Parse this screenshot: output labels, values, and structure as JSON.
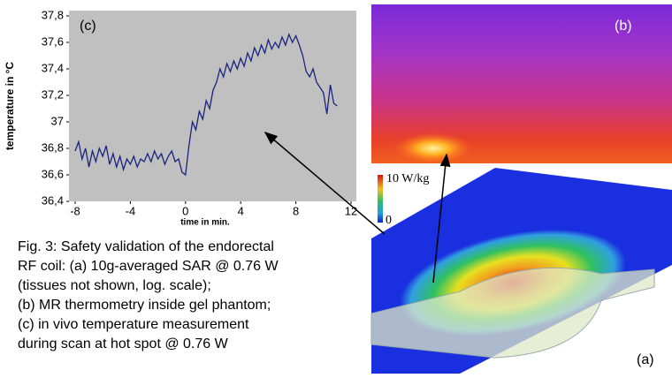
{
  "chart_data": {
    "type": "line",
    "ylabel": "temperature in °C",
    "xlabel": "time in min.",
    "annotation": "(c)",
    "color": "#1a237e",
    "x": [
      -8,
      -7.75,
      -7.5,
      -7.25,
      -7,
      -6.75,
      -6.5,
      -6.25,
      -6,
      -5.75,
      -5.5,
      -5.25,
      -5,
      -4.75,
      -4.5,
      -4.25,
      -4,
      -3.75,
      -3.5,
      -3.25,
      -3,
      -2.75,
      -2.5,
      -2.25,
      -2,
      -1.75,
      -1.5,
      -1.25,
      -1,
      -0.75,
      -0.5,
      -0.25,
      0,
      0.25,
      0.5,
      0.75,
      1,
      1.25,
      1.5,
      1.75,
      2,
      2.25,
      2.5,
      2.75,
      3,
      3.25,
      3.5,
      3.75,
      4,
      4.25,
      4.5,
      4.75,
      5,
      5.25,
      5.5,
      5.75,
      6,
      6.25,
      6.5,
      6.75,
      7,
      7.25,
      7.5,
      7.75,
      8,
      8.25,
      8.5,
      8.75,
      9,
      9.25,
      9.5,
      9.75,
      10,
      10.25,
      10.5,
      10.75,
      11
    ],
    "values": [
      36.78,
      36.85,
      36.72,
      36.8,
      36.66,
      36.78,
      36.7,
      36.8,
      36.74,
      36.82,
      36.68,
      36.76,
      36.66,
      36.74,
      36.64,
      36.72,
      36.68,
      36.74,
      36.66,
      36.72,
      36.7,
      36.76,
      36.7,
      36.78,
      36.72,
      36.76,
      36.68,
      36.74,
      36.78,
      36.7,
      36.72,
      36.62,
      36.6,
      36.82,
      37.0,
      36.94,
      37.08,
      37.02,
      37.16,
      37.1,
      37.24,
      37.3,
      37.4,
      37.34,
      37.44,
      37.38,
      37.46,
      37.4,
      37.48,
      37.42,
      37.52,
      37.46,
      37.56,
      37.5,
      37.58,
      37.52,
      37.62,
      37.55,
      37.6,
      37.56,
      37.64,
      37.58,
      37.66,
      37.6,
      37.65,
      37.58,
      37.5,
      37.38,
      37.34,
      37.4,
      37.3,
      37.26,
      37.22,
      37.06,
      37.28,
      37.14,
      37.12
    ],
    "xlim": [
      -8,
      12
    ],
    "xticks": [
      -8,
      -4,
      0,
      4,
      8,
      12
    ],
    "ylim": [
      36.4,
      37.8
    ],
    "yticks": [
      {
        "value": 36.4,
        "label": "36,4"
      },
      {
        "value": 36.6,
        "label": "36,6"
      },
      {
        "value": 36.8,
        "label": "36,8"
      },
      37,
      {
        "value": 37.2,
        "label": "37,2"
      },
      {
        "value": 37.4,
        "label": "37,4"
      },
      {
        "value": 37.6,
        "label": "37,6"
      },
      {
        "value": 37.8,
        "label": "37,8"
      }
    ]
  },
  "panels": {
    "b": "(b)",
    "a": "(a)",
    "colorbar_max": "10 W/kg",
    "colorbar_min": "0"
  },
  "caption": [
    "Fig. 3: Safety validation of the endorectal",
    "RF coil: (a) 10g-averaged SAR @ 0.76 W",
    "(tissues not shown, log. scale);",
    "(b) MR thermometry inside gel phantom;",
    "(c) in vivo temperature measurement",
    "during scan at hot spot @ 0.76 W"
  ]
}
